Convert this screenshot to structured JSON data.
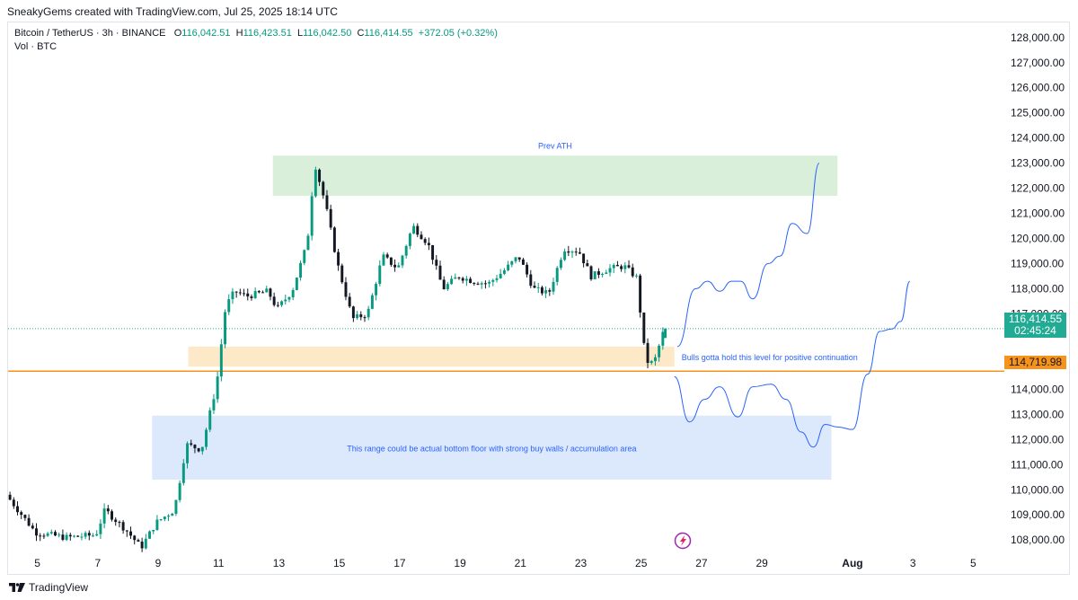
{
  "header": {
    "attribution": "SneakyGems created with TradingView.com, Jul 25, 2025 18:14 UTC"
  },
  "legend": {
    "symbol": "Bitcoin / TetherUS · 3h · BINANCE",
    "open_label": "O",
    "open": "116,042.51",
    "high_label": "H",
    "high": "116,423.51",
    "low_label": "L",
    "low": "116,042.50",
    "close_label": "C",
    "close": "116,414.55",
    "change": "+372.05 (+0.32%)",
    "volume": "Vol · BTC"
  },
  "price_tags": {
    "last_price": "116,414.55",
    "countdown": "02:45:24",
    "level": "114,719.98"
  },
  "footer": {
    "brand": "TradingView"
  },
  "colors": {
    "up": "#089981",
    "down": "#131722",
    "ath_zone": "#d9efd9",
    "support_zone": "#fde8c8",
    "floor_zone": "#dce8fb",
    "projection": "#2962ff",
    "level_line": "#f7931a"
  },
  "chart_data": {
    "type": "candlestick",
    "interval": "3h",
    "y_axis": {
      "position": "right",
      "ticks": [
        "128,000.00",
        "127,000.00",
        "126,000.00",
        "125,000.00",
        "124,000.00",
        "123,000.00",
        "122,000.00",
        "121,000.00",
        "120,000.00",
        "119,000.00",
        "118,000.00",
        "117,000.00",
        "115,000.00",
        "114,000.00",
        "113,000.00",
        "112,000.00",
        "111,000.00",
        "110,000.00",
        "109,000.00",
        "108,000.00"
      ],
      "tick_values": [
        128000,
        127000,
        126000,
        125000,
        124000,
        123000,
        122000,
        121000,
        120000,
        119000,
        118000,
        117000,
        115000,
        114000,
        113000,
        112000,
        111000,
        110000,
        109000,
        108000
      ],
      "ylim": [
        107400,
        128600
      ]
    },
    "x_axis": {
      "ticks": [
        "5",
        "7",
        "9",
        "11",
        "13",
        "15",
        "17",
        "19",
        "21",
        "23",
        "25",
        "27",
        "29",
        "Aug",
        "3",
        "5"
      ],
      "tick_days": [
        5,
        7,
        9,
        11,
        13,
        15,
        17,
        19,
        21,
        23,
        25,
        27,
        29,
        32,
        34,
        36
      ],
      "xlim_days": [
        4.03,
        37.0
      ]
    },
    "daily_path": [
      [
        4.03,
        109800
      ],
      [
        5,
        108300
      ],
      [
        6,
        108100
      ],
      [
        7,
        108200
      ],
      [
        7.3,
        109200
      ],
      [
        8,
        108400
      ],
      [
        8.5,
        107700
      ],
      [
        9,
        108700
      ],
      [
        9.6,
        109200
      ],
      [
        10,
        111800
      ],
      [
        10.5,
        111600
      ],
      [
        11,
        114200
      ],
      [
        11.3,
        117300
      ],
      [
        11.6,
        117900
      ],
      [
        12,
        117700
      ],
      [
        12.7,
        117900
      ],
      [
        13,
        117200
      ],
      [
        13.5,
        117900
      ],
      [
        14,
        119800
      ],
      [
        14.25,
        123000
      ],
      [
        14.6,
        121400
      ],
      [
        15,
        119000
      ],
      [
        15.5,
        116800
      ],
      [
        16,
        117000
      ],
      [
        16.5,
        119300
      ],
      [
        17,
        118800
      ],
      [
        17.5,
        120500
      ],
      [
        18,
        119800
      ],
      [
        18.5,
        118000
      ],
      [
        19,
        118500
      ],
      [
        19.5,
        118300
      ],
      [
        20,
        118200
      ],
      [
        20.5,
        118700
      ],
      [
        21,
        119300
      ],
      [
        21.5,
        118000
      ],
      [
        22,
        117800
      ],
      [
        22.5,
        119600
      ],
      [
        23,
        119500
      ],
      [
        23.4,
        118500
      ],
      [
        24,
        118800
      ],
      [
        24.5,
        118900
      ],
      [
        24.95,
        118400
      ],
      [
        25.1,
        116000
      ],
      [
        25.3,
        115000
      ],
      [
        25.5,
        115100
      ],
      [
        25.8,
        116300
      ]
    ],
    "last_candle": {
      "open": 116042.51,
      "high": 116423.51,
      "low": 116042.5,
      "close": 116414.55
    },
    "zones": [
      {
        "label": "Prev ATH",
        "from_day": 12.8,
        "to_day": 31.5,
        "low": 121700,
        "high": 123300
      },
      {
        "label": "Bulls gotta hold this level for positive continuation",
        "from_day": 10.0,
        "to_day": 26.1,
        "low": 114900,
        "high": 115700
      },
      {
        "label": "This range could be actual bottom floor with strong buy walls / accumulation area",
        "from_day": 8.8,
        "to_day": 31.3,
        "low": 110400,
        "high": 112950
      }
    ],
    "level_line": {
      "value": 114719.98
    },
    "last_price_line": {
      "value": 116414.55
    },
    "projection_up": [
      [
        26.2,
        115700
      ],
      [
        26.8,
        118000
      ],
      [
        27.2,
        118300
      ],
      [
        27.6,
        117900
      ],
      [
        28.0,
        118300
      ],
      [
        28.3,
        118300
      ],
      [
        28.7,
        117600
      ],
      [
        29.2,
        119000
      ],
      [
        29.6,
        119300
      ],
      [
        30.0,
        120600
      ],
      [
        30.5,
        120200
      ],
      [
        30.9,
        123000
      ]
    ],
    "projection_down": [
      [
        26.1,
        114500
      ],
      [
        26.6,
        112700
      ],
      [
        27.1,
        113600
      ],
      [
        27.6,
        114100
      ],
      [
        28.2,
        112900
      ],
      [
        28.7,
        114100
      ],
      [
        29.3,
        114200
      ],
      [
        29.8,
        113600
      ],
      [
        30.3,
        112300
      ],
      [
        30.7,
        111700
      ],
      [
        31.1,
        112600
      ],
      [
        31.5,
        112500
      ],
      [
        32.0,
        112400
      ],
      [
        32.5,
        114600
      ],
      [
        32.9,
        116300
      ],
      [
        33.3,
        116400
      ],
      [
        33.6,
        116700
      ],
      [
        33.9,
        118300
      ]
    ]
  }
}
